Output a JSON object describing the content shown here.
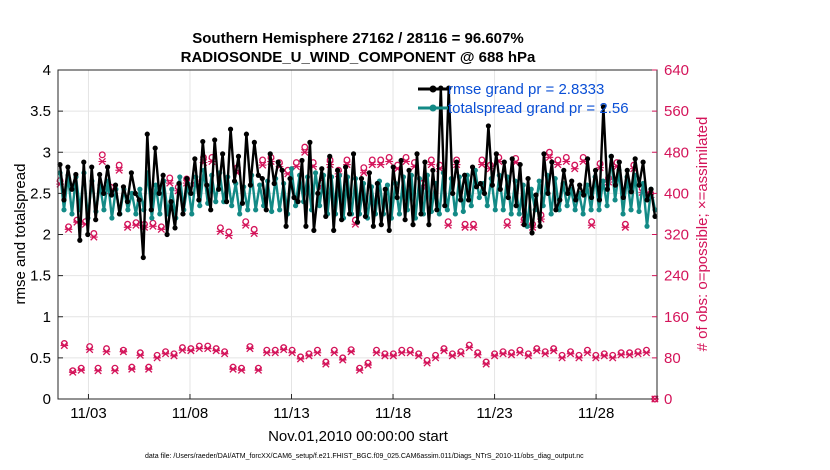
{
  "chart_data": {
    "type": "line",
    "title_line1": "Southern Hemisphere 27162 / 28116 = 96.607%",
    "title_line2": "RADIOSONDE_U_WIND_COMPONENT @ 688 hPa",
    "xlabel": "Nov.01,2010 00:00:00 start",
    "ylabel_left": "rmse and totalspread",
    "ylabel_right": "# of obs: o=possible; ×=assimilated",
    "footnote": "data file: /Users/raeder/DAI/ATM_forcXX/CAM6_setup/f.e21.FHIST_BGC.f09_025.CAM6assim.011/Diags_NTrS_2010-11/obs_diag_output.nc",
    "xlim": [
      1.5,
      31.0
    ],
    "ylim_left": [
      0,
      4
    ],
    "ylim_right": [
      0,
      640
    ],
    "left_ticks": [
      "0",
      "0.5",
      "1",
      "1.5",
      "2",
      "2.5",
      "3",
      "3.5",
      "4"
    ],
    "left_tick_values": [
      0,
      0.5,
      1,
      1.5,
      2,
      2.5,
      3,
      3.5,
      4
    ],
    "right_ticks": [
      "0",
      "80",
      "160",
      "240",
      "320",
      "400",
      "480",
      "560",
      "640"
    ],
    "right_tick_values": [
      0,
      80,
      160,
      240,
      320,
      400,
      480,
      560,
      640
    ],
    "x_ticks": [
      "11/03",
      "11/08",
      "11/13",
      "11/18",
      "11/23",
      "11/28"
    ],
    "x_tick_values": [
      3,
      8,
      13,
      18,
      23,
      28
    ],
    "colors": {
      "rmse": "#000000",
      "spread": "#138a86",
      "obs": "#d4145a",
      "legend_text": "#0a4fd6",
      "grid": "#e4e4e4"
    },
    "series": [
      {
        "name": "rmse grand pr = 2.8333",
        "axis": "left",
        "values": [
          2.85,
          2.42,
          2.82,
          2.55,
          2.73,
          1.93,
          2.88,
          2.0,
          2.82,
          2.18,
          2.73,
          2.5,
          2.82,
          2.48,
          2.6,
          2.25,
          2.58,
          2.4,
          2.75,
          2.5,
          2.42,
          1.72,
          3.22,
          2.3,
          3.05,
          2.5,
          2.72,
          2.0,
          2.4,
          2.08,
          2.62,
          2.25,
          2.68,
          2.5,
          2.92,
          2.42,
          3.13,
          2.6,
          2.3,
          3.15,
          2.55,
          2.98,
          2.4,
          3.28,
          2.65,
          2.95,
          2.38,
          3.22,
          2.6,
          3.12,
          2.72,
          2.68,
          2.3,
          2.98,
          2.62,
          2.88,
          2.78,
          2.1,
          2.68,
          2.45,
          2.4,
          2.9,
          2.1,
          3.12,
          2.05,
          2.5,
          2.8,
          2.22,
          2.95,
          2.05,
          2.78,
          2.18,
          2.82,
          2.25,
          2.98,
          2.15,
          2.68,
          2.22,
          2.75,
          2.1,
          2.62,
          2.12,
          2.55,
          2.05,
          2.82,
          2.45,
          2.9,
          2.18,
          2.78,
          2.12,
          2.98,
          2.25,
          2.88,
          2.12,
          2.78,
          2.3,
          3.78,
          2.35,
          3.78,
          2.5,
          2.88,
          2.42,
          2.72,
          2.42,
          2.82,
          2.58,
          2.62,
          2.5,
          3.32,
          2.6,
          2.98,
          2.55,
          2.88,
          2.45,
          2.92,
          2.35,
          2.85,
          2.12,
          2.68,
          2.02,
          2.48,
          2.1,
          2.98,
          2.5,
          2.88,
          2.3,
          2.42,
          2.78,
          2.5,
          2.65,
          2.42,
          2.6,
          2.48,
          2.92,
          2.45,
          2.78,
          2.42,
          3.55,
          2.55,
          2.95,
          2.6,
          2.88,
          2.45,
          2.78,
          2.52,
          2.92,
          2.6,
          2.88,
          2.42,
          2.55,
          2.22
        ]
      },
      {
        "name": "totalspread grand pr = 2.56",
        "axis": "left",
        "values": [
          2.75,
          2.3,
          2.72,
          2.25,
          2.7,
          2.3,
          2.75,
          2.2,
          2.65,
          2.28,
          2.6,
          2.3,
          2.65,
          2.2,
          2.55,
          2.25,
          2.55,
          2.3,
          2.5,
          2.25,
          2.55,
          2.3,
          2.75,
          2.2,
          2.6,
          2.25,
          2.65,
          2.25,
          2.55,
          2.2,
          2.7,
          2.3,
          2.62,
          2.25,
          2.7,
          2.35,
          2.78,
          2.38,
          2.72,
          2.4,
          2.75,
          2.4,
          2.7,
          2.35,
          2.62,
          2.25,
          2.58,
          2.3,
          2.72,
          2.3,
          2.6,
          2.35,
          2.65,
          2.28,
          2.68,
          2.3,
          2.62,
          2.25,
          2.8,
          2.35,
          2.72,
          2.4,
          2.7,
          2.3,
          2.75,
          2.35,
          2.72,
          2.25,
          2.7,
          2.25,
          2.72,
          2.2,
          2.7,
          2.25,
          2.68,
          2.25,
          2.62,
          2.2,
          2.58,
          2.25,
          2.65,
          2.25,
          2.6,
          2.2,
          2.62,
          2.25,
          2.7,
          2.3,
          2.72,
          2.2,
          2.68,
          2.25,
          2.72,
          2.28,
          2.62,
          2.25,
          2.75,
          2.3,
          2.68,
          2.25,
          2.7,
          2.28,
          2.72,
          2.35,
          2.78,
          2.45,
          2.62,
          2.35,
          2.68,
          2.3,
          2.72,
          2.3,
          2.7,
          2.25,
          2.65,
          2.25,
          2.6,
          2.1,
          2.55,
          2.3,
          2.65,
          2.35,
          2.72,
          2.25,
          2.68,
          2.3,
          2.62,
          2.35,
          2.55,
          2.3,
          2.5,
          2.25,
          2.6,
          2.3,
          2.7,
          2.3,
          2.65,
          2.35,
          2.95,
          2.42,
          2.78,
          2.25,
          2.7,
          2.3,
          2.72,
          2.28,
          2.62,
          2.1,
          2.55,
          2.3
        ]
      },
      {
        "name": "obs possible (o)",
        "axis": "right",
        "values": [
          425,
          108,
          335,
          55,
          348,
          60,
          345,
          102,
          322,
          60,
          475,
          98,
          412,
          60,
          455,
          95,
          340,
          62,
          343,
          90,
          340,
          62,
          342,
          85,
          335,
          92,
          430,
          88,
          412,
          100,
          428,
          98,
          425,
          103,
          470,
          103,
          470,
          98,
          333,
          92,
          325,
          62,
          450,
          60,
          345,
          102,
          330,
          60,
          465,
          95,
          470,
          95,
          460,
          100,
          445,
          95,
          460,
          82,
          490,
          88,
          460,
          95,
          420,
          72,
          465,
          95,
          445,
          80,
          465,
          96,
          348,
          60,
          450,
          70,
          465,
          95,
          465,
          88,
          470,
          88,
          455,
          95,
          470,
          95,
          460,
          88,
          420,
          75,
          465,
          85,
          455,
          98,
          345,
          88,
          465,
          92,
          340,
          105,
          340,
          90,
          465,
          72,
          455,
          88,
          470,
          92,
          345,
          90,
          468,
          95,
          350,
          88,
          340,
          98,
          358,
          92,
          480,
          98,
          465,
          85,
          470,
          92,
          455,
          85,
          470,
          95,
          345,
          85,
          458,
          88,
          430,
          85,
          460,
          90,
          340,
          90,
          455,
          92,
          410,
          95,
          400,
          0
        ]
      },
      {
        "name": "obs assimilated (x)",
        "axis": "right",
        "values": [
          418,
          104,
          330,
          52,
          344,
          56,
          340,
          96,
          315,
          55,
          462,
          92,
          405,
          55,
          445,
          92,
          334,
          58,
          338,
          85,
          334,
          58,
          336,
          80,
          330,
          88,
          420,
          84,
          405,
          95,
          420,
          94,
          418,
          98,
          460,
          98,
          462,
          94,
          326,
          88,
          318,
          58,
          440,
          56,
          338,
          98,
          322,
          56,
          455,
          90,
          462,
          90,
          452,
          96,
          438,
          90,
          452,
          78,
          480,
          84,
          452,
          90,
          412,
          68,
          456,
          90,
          438,
          76,
          456,
          92,
          340,
          56,
          440,
          66,
          456,
          90,
          456,
          84,
          462,
          84,
          448,
          90,
          462,
          90,
          452,
          84,
          412,
          70,
          456,
          80,
          448,
          94,
          338,
          84,
          456,
          88,
          334,
          100,
          334,
          86,
          456,
          68,
          448,
          84,
          462,
          88,
          338,
          86,
          460,
          90,
          344,
          84,
          334,
          94,
          350,
          88,
          470,
          94,
          456,
          80,
          462,
          88,
          448,
          80,
          462,
          90,
          338,
          80,
          450,
          84,
          422,
          80,
          452,
          86,
          334,
          86,
          448,
          88,
          402,
          90,
          392,
          0
        ]
      }
    ],
    "legend": {
      "position": "top-right",
      "rmse_label": "rmse grand pr = 2.8333",
      "spread_label": "totalspread grand pr = 2.56"
    }
  }
}
